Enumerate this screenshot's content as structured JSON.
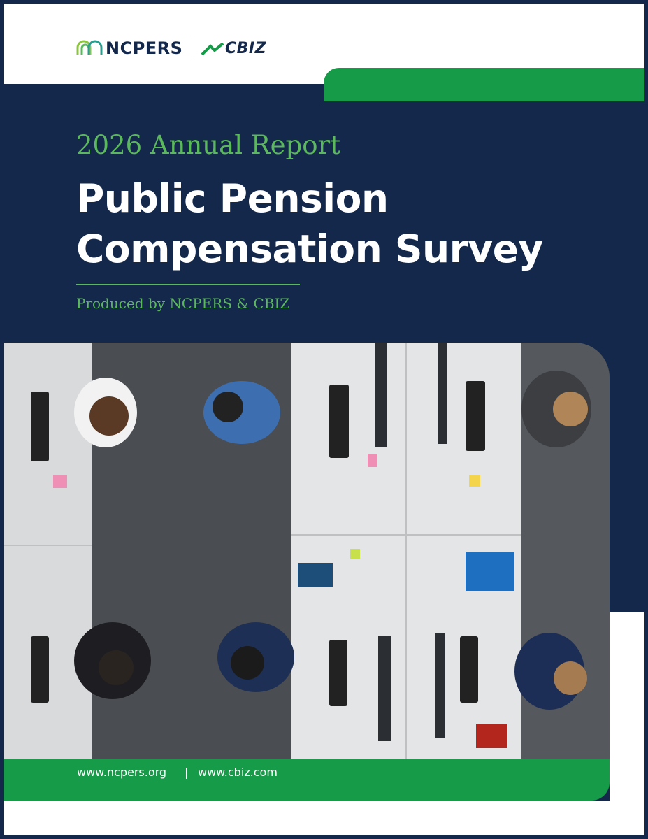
{
  "header": {
    "logos": [
      "NCPERS",
      "CBIZ"
    ]
  },
  "cover": {
    "kicker": "2026 Annual Report",
    "title_lines": [
      "Public Pension",
      "Compensation Survey"
    ],
    "byline": "Produced by NCPERS & CBIZ"
  },
  "footer": {
    "links": [
      "www.ncpers.org",
      "www.cbiz.com"
    ],
    "separator": "|"
  }
}
